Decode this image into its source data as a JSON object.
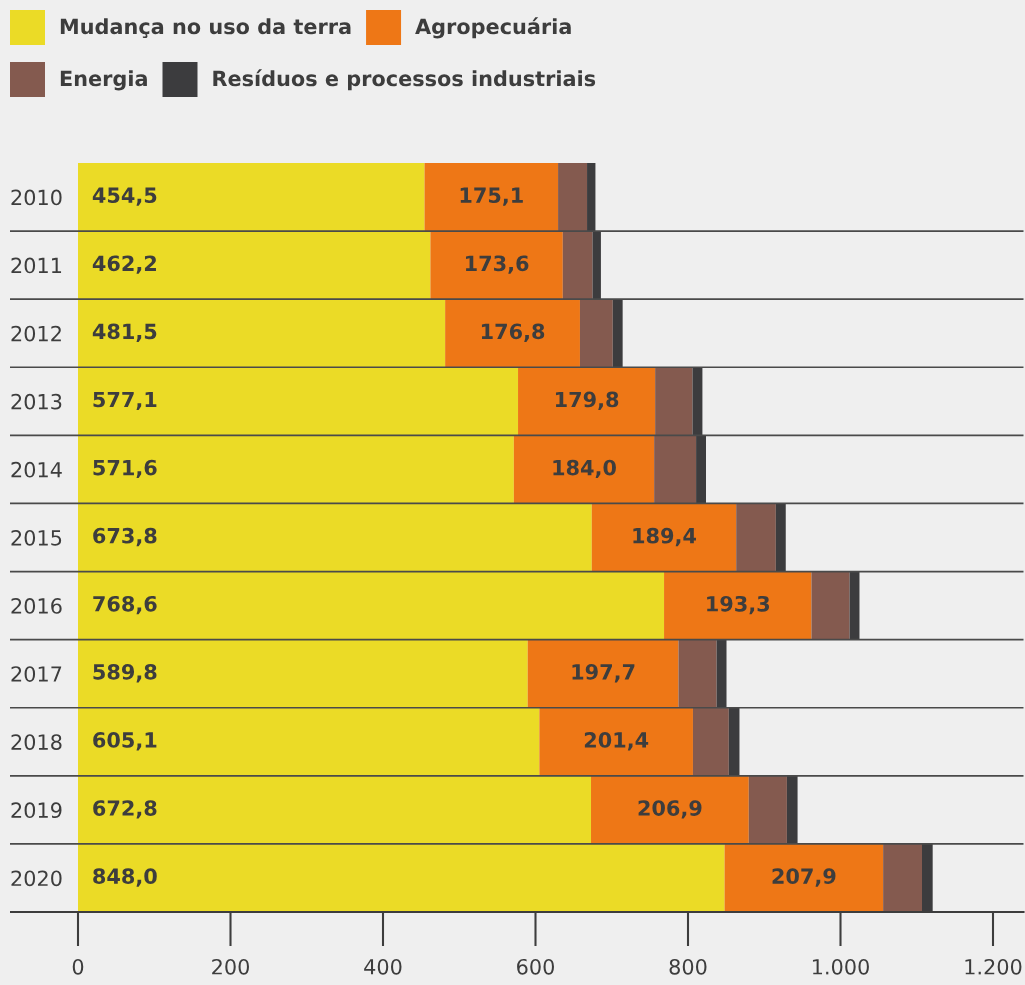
{
  "chart_data": {
    "type": "bar",
    "orientation": "horizontal",
    "stacked": true,
    "categories": [
      "2010",
      "2011",
      "2012",
      "2013",
      "2014",
      "2015",
      "2016",
      "2017",
      "2018",
      "2019",
      "2020"
    ],
    "series": [
      {
        "name": "Mudança no uso da terra",
        "color": "#ebdb26",
        "values": [
          454.5,
          462.2,
          481.5,
          577.1,
          571.6,
          673.8,
          768.6,
          589.8,
          605.1,
          672.8,
          848.0
        ],
        "value_labels": [
          "454,5",
          "462,2",
          "481,5",
          "577,1",
          "571,6",
          "673,8",
          "768,6",
          "589,8",
          "605,1",
          "672,8",
          "848,0"
        ]
      },
      {
        "name": "Agropecuária",
        "color": "#ee7716",
        "values": [
          175.1,
          173.6,
          176.8,
          179.8,
          184.0,
          189.4,
          193.3,
          197.7,
          201.4,
          206.9,
          207.9
        ],
        "value_labels": [
          "175,1",
          "173,6",
          "176,8",
          "179,8",
          "184,0",
          "189,4",
          "193,3",
          "197,7",
          "201,4",
          "206,9",
          "207,9"
        ]
      },
      {
        "name": "Energia",
        "color": "#845a4f",
        "values": [
          38,
          39,
          43,
          49,
          55,
          52,
          50,
          50,
          47,
          50,
          51
        ]
      },
      {
        "name": "Resíduos e processos industriais",
        "color": "#3c3c3e",
        "values": [
          11,
          11,
          13,
          13,
          13,
          13,
          13,
          13,
          14,
          14,
          14
        ]
      }
    ],
    "xlim": [
      0,
      1240
    ],
    "xticks": [
      0,
      200,
      400,
      600,
      800,
      {
        "value": 1000,
        "label": "1.000"
      },
      {
        "value": 1200,
        "label": "1.200"
      }
    ],
    "legend": "top left"
  }
}
